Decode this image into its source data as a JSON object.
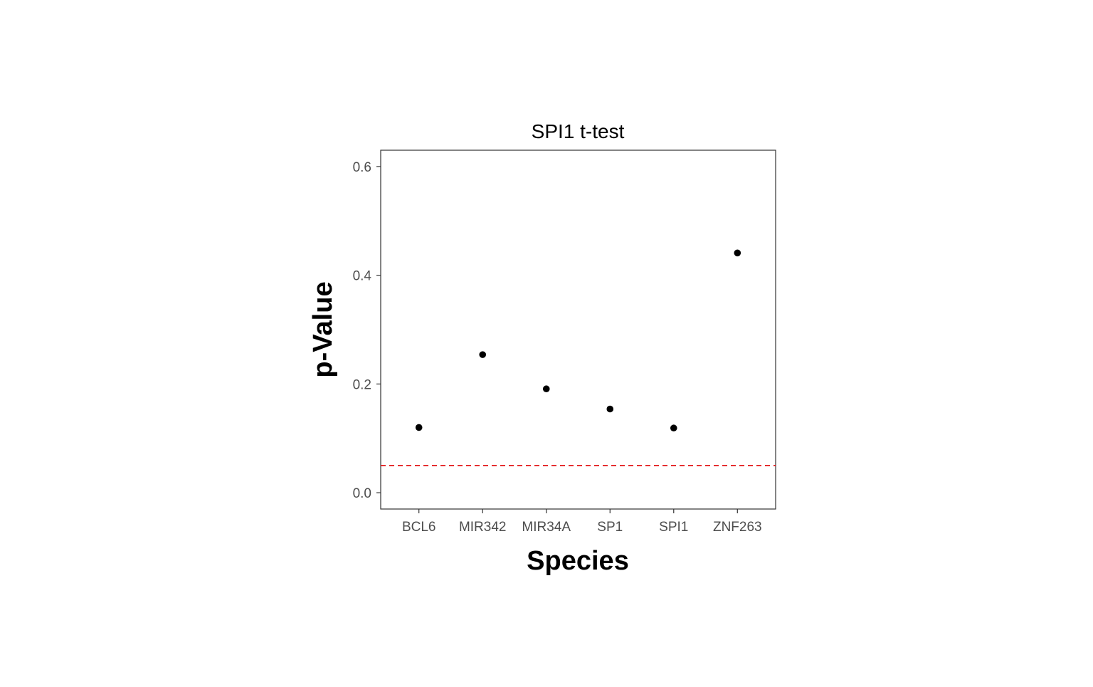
{
  "chart_data": {
    "type": "scatter",
    "title": "SPI1 t-test",
    "xlabel": "Species",
    "ylabel": "p-Value",
    "categories": [
      "BCL6",
      "MIR342",
      "MIR34A",
      "SP1",
      "SPI1",
      "ZNF263"
    ],
    "series": [
      {
        "values": [
          0.12,
          0.254,
          0.191,
          0.154,
          0.119,
          0.441
        ]
      }
    ],
    "ylim": [
      -0.03,
      0.63
    ],
    "yticks": [
      0.0,
      0.2,
      0.4,
      0.6
    ],
    "ytick_labels": [
      "0.0",
      "0.2",
      "0.4",
      "0.6"
    ],
    "reference_line": {
      "y": 0.05,
      "style": "dashed"
    },
    "grid": false,
    "legend": "none",
    "colors": {
      "point": "#000000",
      "reference_line": "#e31a1c",
      "frame": "#333333",
      "tick_text": "#4d4d4d"
    }
  }
}
